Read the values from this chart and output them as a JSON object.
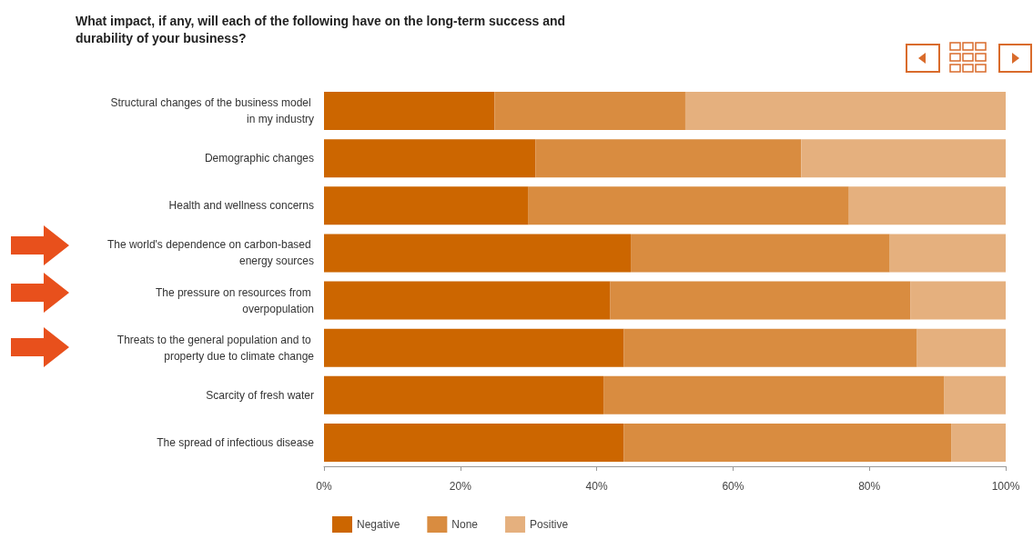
{
  "chart_data": {
    "type": "bar",
    "orientation": "horizontal",
    "stacked": true,
    "title": "What impact, if any, will each of the following have on the long-term success and durability of your business?",
    "categories": [
      "Structural changes of the business model in my industry",
      "Demographic changes",
      "Health and wellness concerns",
      "The world's dependence on carbon-based energy sources",
      "The pressure on resources from overpopulation",
      "Threats to the general population and to property due to climate change",
      "Scarcity of fresh water",
      "The spread of infectious disease"
    ],
    "series": [
      {
        "name": "Negative",
        "color": "#cc6600",
        "values": [
          25,
          31,
          30,
          45,
          42,
          44,
          41,
          44
        ]
      },
      {
        "name": "None",
        "color": "#d98c40",
        "values": [
          28,
          39,
          47,
          38,
          44,
          43,
          50,
          48
        ]
      },
      {
        "name": "Positive",
        "color": "#e5b07e",
        "values": [
          47,
          30,
          23,
          17,
          14,
          13,
          9,
          8
        ]
      }
    ],
    "xlim": [
      0,
      100
    ],
    "xticks": [
      {
        "value": 0,
        "label": "0%"
      },
      {
        "value": 20,
        "label": "20%"
      },
      {
        "value": 40,
        "label": "40%"
      },
      {
        "value": 60,
        "label": "60%"
      },
      {
        "value": 80,
        "label": "80%"
      },
      {
        "value": 100,
        "label": "100%"
      }
    ],
    "grid": false,
    "legend": "bottom"
  }
}
